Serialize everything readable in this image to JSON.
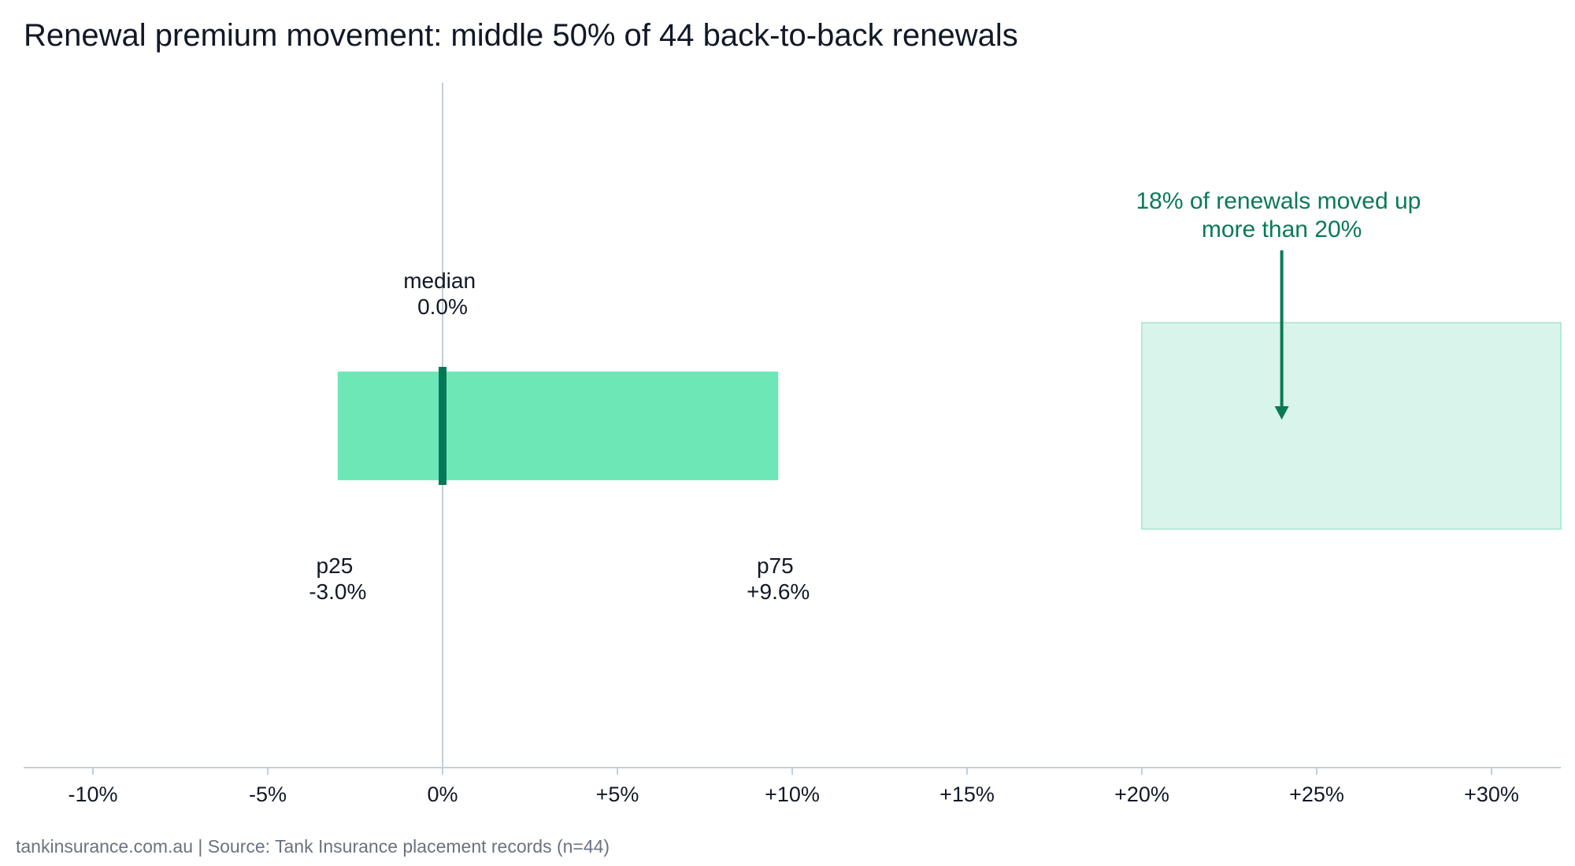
{
  "title": "Renewal premium movement: middle 50% of 44 back-to-back renewals",
  "footer": "tankinsurance.com.au | Source: Tank Insurance placement records (n=44)",
  "chart_data": {
    "type": "bar",
    "orientation": "horizontal",
    "xlim": [
      -12,
      32
    ],
    "x_ticks": [
      -10,
      -5,
      0,
      5,
      10,
      15,
      20,
      25,
      30
    ],
    "x_tick_labels": [
      "-10%",
      "-5%",
      "0%",
      "+5%",
      "+10%",
      "+15%",
      "+20%",
      "+25%",
      "+30%"
    ],
    "reference_line_x": 0,
    "grid": false,
    "series": [
      {
        "p25": -3.0,
        "median": 0.0,
        "p75": 9.6
      }
    ],
    "labels": {
      "median": [
        "median",
        "0.0%"
      ],
      "p25": [
        "p25",
        "-3.0%"
      ],
      "p75": [
        "p75",
        "+9.6%"
      ]
    },
    "highlight_region": {
      "x_from": 20,
      "x_to": 32
    },
    "annotation": {
      "lines": [
        "18% of renewals moved up",
        "more than 20%"
      ],
      "arrow_x": 24
    },
    "colors": {
      "iqr_bar": "#6ee7b7",
      "median_mark": "#047857",
      "highlight": "#d9f4ea",
      "highlight_border": "#b6ead6",
      "annotation": "#0a7a55",
      "axis": "#c3cfd9",
      "zero_line": "#c3cfd9"
    }
  }
}
